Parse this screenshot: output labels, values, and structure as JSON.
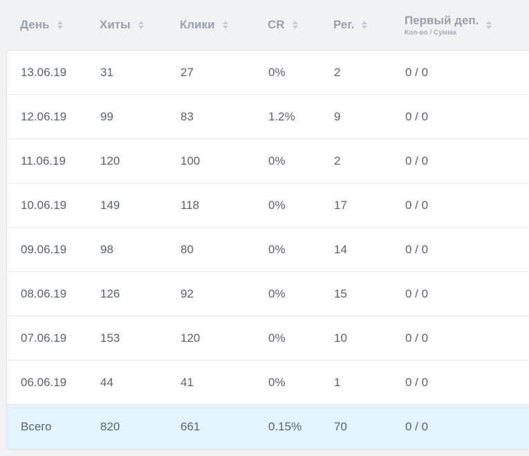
{
  "table": {
    "headers": [
      {
        "label": "День",
        "sub": ""
      },
      {
        "label": "Хиты",
        "sub": ""
      },
      {
        "label": "Клики",
        "sub": ""
      },
      {
        "label": "CR",
        "sub": ""
      },
      {
        "label": "Рег.",
        "sub": ""
      },
      {
        "label": "Первый деп.",
        "sub": "Кол-во / Сумма"
      }
    ],
    "rows": [
      [
        "13.06.19",
        "31",
        "27",
        "0%",
        "2",
        "0 / 0"
      ],
      [
        "12.06.19",
        "99",
        "83",
        "1.2%",
        "9",
        "0 / 0"
      ],
      [
        "11.06.19",
        "120",
        "100",
        "0%",
        "2",
        "0 / 0"
      ],
      [
        "10.06.19",
        "149",
        "118",
        "0%",
        "17",
        "0 / 0"
      ],
      [
        "09.06.19",
        "98",
        "80",
        "0%",
        "14",
        "0 / 0"
      ],
      [
        "08.06.19",
        "126",
        "92",
        "0%",
        "15",
        "0 / 0"
      ],
      [
        "07.06.19",
        "153",
        "120",
        "0%",
        "10",
        "0 / 0"
      ],
      [
        "06.06.19",
        "44",
        "41",
        "0%",
        "1",
        "0 / 0"
      ]
    ],
    "total": [
      "Всего",
      "820",
      "661",
      "0.15%",
      "70",
      "0 / 0"
    ]
  },
  "colors": {
    "header_text": "#98a0ad",
    "cell_text": "#5a6270",
    "total_row_bg": "#e3f4fc",
    "page_bg": "#f0f2f5"
  }
}
